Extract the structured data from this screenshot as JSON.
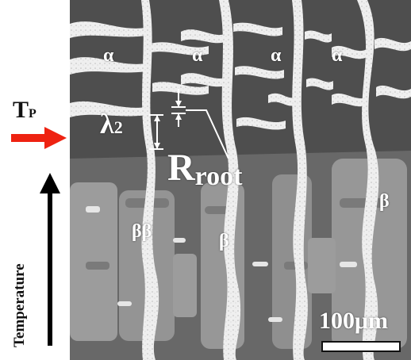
{
  "annotations": {
    "tp_main": "T",
    "tp_sub": "P",
    "temperature_axis": "Temperature",
    "lambda_main": "λ",
    "lambda_sub": "2",
    "rroot_main": "R",
    "rroot_sub": "root",
    "scale_bar": "100μm"
  },
  "phase_labels": {
    "alpha_1": "α",
    "alpha_2": "α",
    "alpha_3": "α",
    "alpha_4": "α",
    "beta_1": "ββ",
    "beta_2": "β",
    "beta_3": "β"
  },
  "colors": {
    "arrow_tp": "#ee2211",
    "arrow_temperature": "#000000",
    "matrix_dark": "#4e4e4e",
    "dendrite_white": "#f2f2f2",
    "beta_phase_gray": "#9c9c9c"
  }
}
